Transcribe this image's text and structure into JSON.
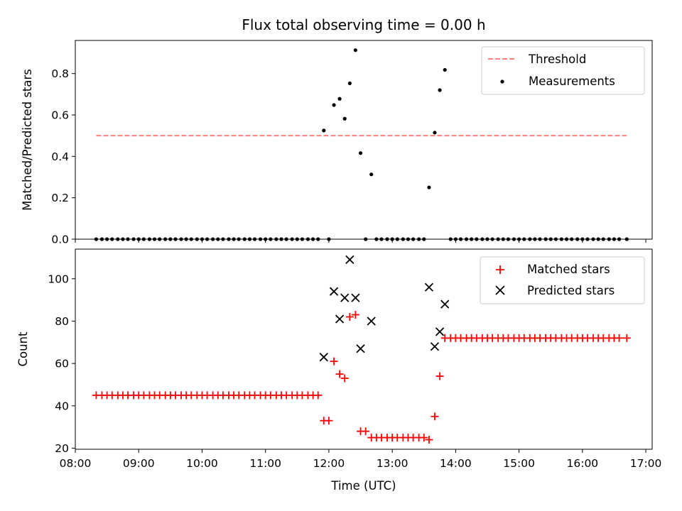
{
  "chart_data": [
    {
      "type": "scatter",
      "title": "Flux total observing time = 0.00 h",
      "ylabel": "Matched/Predicted stars",
      "xlim": [
        8.0,
        17.1
      ],
      "ylim": [
        0.0,
        0.96
      ],
      "yticks": [
        "0.0",
        "0.2",
        "0.4",
        "0.6",
        "0.8"
      ],
      "legend": {
        "placement": "top-right",
        "entries": [
          "Threshold",
          "Measurements"
        ]
      },
      "colors": {
        "threshold": "#ff7f7f",
        "measurements": "#000000"
      },
      "series": [
        {
          "name": "Threshold",
          "kind": "dashed-line",
          "x": [
            8.33,
            16.7
          ],
          "y": [
            0.5,
            0.5
          ]
        },
        {
          "name": "Measurements",
          "kind": "dots",
          "x": [
            8.33,
            8.42,
            8.5,
            8.58,
            8.67,
            8.75,
            8.83,
            8.92,
            9.0,
            9.08,
            9.17,
            9.25,
            9.33,
            9.42,
            9.5,
            9.58,
            9.67,
            9.75,
            9.83,
            9.92,
            10.0,
            10.08,
            10.17,
            10.25,
            10.33,
            10.42,
            10.5,
            10.58,
            10.67,
            10.75,
            10.83,
            10.92,
            11.0,
            11.08,
            11.17,
            11.25,
            11.33,
            11.42,
            11.5,
            11.58,
            11.67,
            11.75,
            11.83,
            11.92,
            12.0,
            12.08,
            12.17,
            12.25,
            12.33,
            12.42,
            12.5,
            12.58,
            12.67,
            12.75,
            12.83,
            12.92,
            13.0,
            13.08,
            13.17,
            13.25,
            13.33,
            13.42,
            13.5,
            13.58,
            13.67,
            13.75,
            13.83,
            13.92,
            14.0,
            14.08,
            14.17,
            14.25,
            14.33,
            14.42,
            14.5,
            14.58,
            14.67,
            14.75,
            14.83,
            14.92,
            15.0,
            15.08,
            15.17,
            15.25,
            15.33,
            15.42,
            15.5,
            15.58,
            15.67,
            15.75,
            15.83,
            15.92,
            16.0,
            16.08,
            16.17,
            16.25,
            16.33,
            16.42,
            16.5,
            16.58,
            16.7
          ],
          "y": [
            0,
            0,
            0,
            0,
            0,
            0,
            0,
            0,
            0,
            0,
            0,
            0,
            0,
            0,
            0,
            0,
            0,
            0,
            0,
            0,
            0,
            0,
            0,
            0,
            0,
            0,
            0,
            0,
            0,
            0,
            0,
            0,
            0,
            0,
            0,
            0,
            0,
            0,
            0,
            0,
            0,
            0,
            0,
            0.525,
            0,
            0.648,
            0.678,
            0.582,
            0.753,
            0.913,
            0.416,
            0,
            0.313,
            0,
            0,
            0,
            0,
            0,
            0,
            0,
            0,
            0,
            0,
            0.25,
            0.515,
            0.72,
            0.818,
            0,
            0,
            0,
            0,
            0,
            0,
            0,
            0,
            0,
            0,
            0,
            0,
            0,
            0,
            0,
            0,
            0,
            0,
            0,
            0,
            0,
            0,
            0,
            0,
            0,
            0,
            0,
            0,
            0,
            0,
            0,
            0,
            0,
            0
          ]
        }
      ]
    },
    {
      "type": "scatter",
      "xlabel": "Time (UTC)",
      "ylabel": "Count",
      "xlim": [
        8.0,
        17.1
      ],
      "ylim": [
        19.5,
        114
      ],
      "xticks": [
        "08:00",
        "09:00",
        "10:00",
        "11:00",
        "12:00",
        "13:00",
        "14:00",
        "15:00",
        "16:00",
        "17:00"
      ],
      "yticks": [
        "20",
        "40",
        "60",
        "80",
        "100"
      ],
      "legend": {
        "placement": "top-right",
        "entries": [
          "Matched stars",
          "Predicted stars"
        ]
      },
      "colors": {
        "matched": "#ff0000",
        "predicted": "#000000"
      },
      "series": [
        {
          "name": "Matched stars",
          "kind": "plus",
          "x": [
            8.33,
            8.42,
            8.5,
            8.58,
            8.67,
            8.75,
            8.83,
            8.92,
            9.0,
            9.08,
            9.17,
            9.25,
            9.33,
            9.42,
            9.5,
            9.58,
            9.67,
            9.75,
            9.83,
            9.92,
            10.0,
            10.08,
            10.17,
            10.25,
            10.33,
            10.42,
            10.5,
            10.58,
            10.67,
            10.75,
            10.83,
            10.92,
            11.0,
            11.08,
            11.17,
            11.25,
            11.33,
            11.42,
            11.5,
            11.58,
            11.67,
            11.75,
            11.83,
            11.92,
            12.0,
            12.08,
            12.17,
            12.25,
            12.33,
            12.42,
            12.5,
            12.58,
            12.67,
            12.75,
            12.83,
            12.92,
            13.0,
            13.08,
            13.17,
            13.25,
            13.33,
            13.42,
            13.5,
            13.58,
            13.67,
            13.75,
            13.83,
            13.92,
            14.0,
            14.08,
            14.17,
            14.25,
            14.33,
            14.42,
            14.5,
            14.58,
            14.67,
            14.75,
            14.83,
            14.92,
            15.0,
            15.08,
            15.17,
            15.25,
            15.33,
            15.42,
            15.5,
            15.58,
            15.67,
            15.75,
            15.83,
            15.92,
            16.0,
            16.08,
            16.17,
            16.25,
            16.33,
            16.42,
            16.5,
            16.58,
            16.7
          ],
          "y": [
            45,
            45,
            45,
            45,
            45,
            45,
            45,
            45,
            45,
            45,
            45,
            45,
            45,
            45,
            45,
            45,
            45,
            45,
            45,
            45,
            45,
            45,
            45,
            45,
            45,
            45,
            45,
            45,
            45,
            45,
            45,
            45,
            45,
            45,
            45,
            45,
            45,
            45,
            45,
            45,
            45,
            45,
            45,
            33,
            33,
            61,
            55,
            53,
            82,
            83,
            28,
            28,
            25,
            25,
            25,
            25,
            25,
            25,
            25,
            25,
            25,
            25,
            25,
            24,
            35,
            54,
            72,
            72,
            72,
            72,
            72,
            72,
            72,
            72,
            72,
            72,
            72,
            72,
            72,
            72,
            72,
            72,
            72,
            72,
            72,
            72,
            72,
            72,
            72,
            72,
            72,
            72,
            72,
            72,
            72,
            72,
            72,
            72,
            72,
            72,
            72
          ]
        },
        {
          "name": "Predicted stars",
          "kind": "x",
          "x": [
            11.92,
            12.08,
            12.17,
            12.25,
            12.33,
            12.42,
            12.5,
            12.67,
            13.58,
            13.67,
            13.75,
            13.83
          ],
          "y": [
            63,
            94,
            81,
            91,
            109,
            91,
            67,
            80,
            96,
            68,
            75,
            88
          ]
        }
      ]
    }
  ]
}
